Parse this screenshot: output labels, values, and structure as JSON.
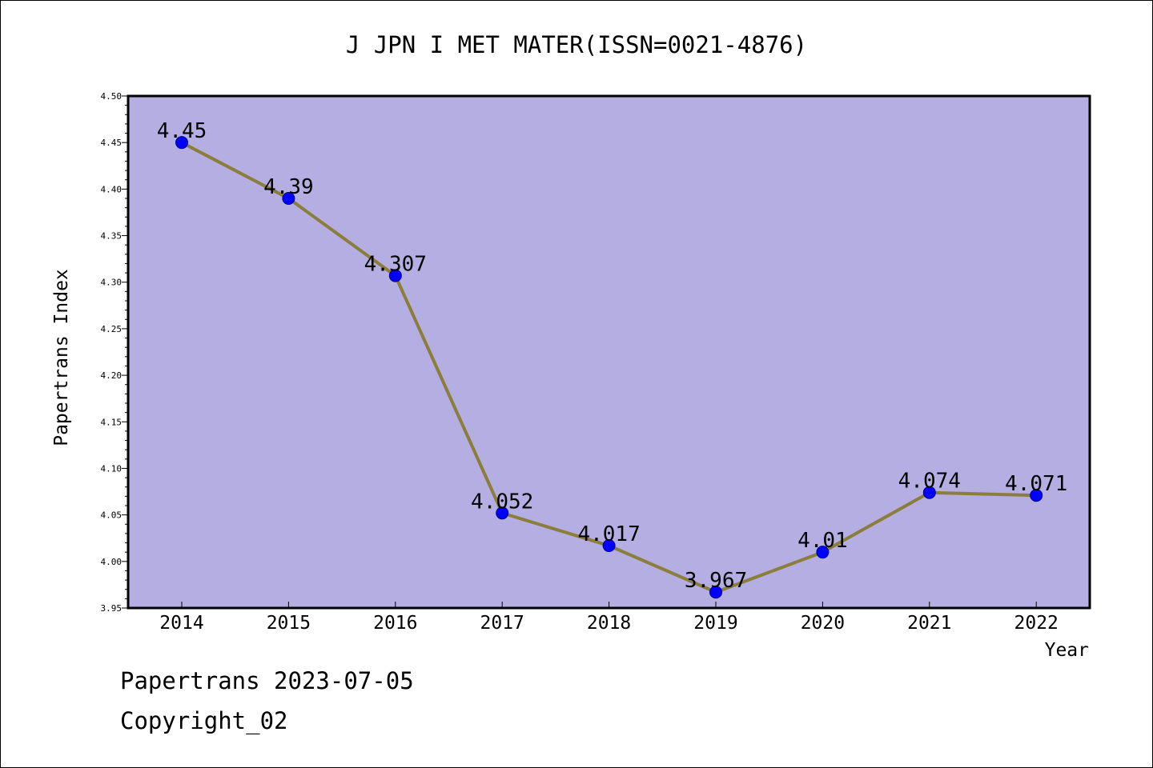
{
  "chart_data": {
    "type": "line",
    "title": "J JPN I MET MATER(ISSN=0021-4876)",
    "xlabel": "Year",
    "ylabel": "Papertrans Index",
    "categories": [
      "2014",
      "2015",
      "2016",
      "2017",
      "2018",
      "2019",
      "2020",
      "2021",
      "2022"
    ],
    "series": [
      {
        "values": [
          4.45,
          4.39,
          4.307,
          4.052,
          4.017,
          3.967,
          4.01,
          4.074,
          4.071
        ],
        "labels": [
          "4.45",
          "4.39",
          "4.307",
          "4.052",
          "4.017",
          "3.967",
          "4.01",
          "4.074",
          "4.071"
        ]
      }
    ],
    "ylim": [
      3.95,
      4.5
    ],
    "yticks": [
      "3.95",
      "4.00",
      "4.05",
      "4.10",
      "4.15",
      "4.20",
      "4.25",
      "4.30",
      "4.35",
      "4.40",
      "4.45",
      "4.50"
    ],
    "grid": false,
    "colors": {
      "plot_background": "#b4aee2",
      "line": "#8b7d3a",
      "marker": "#0000ff"
    }
  },
  "footer": {
    "line1": "Papertrans 2023-07-05",
    "line2": "Copyright_02"
  }
}
